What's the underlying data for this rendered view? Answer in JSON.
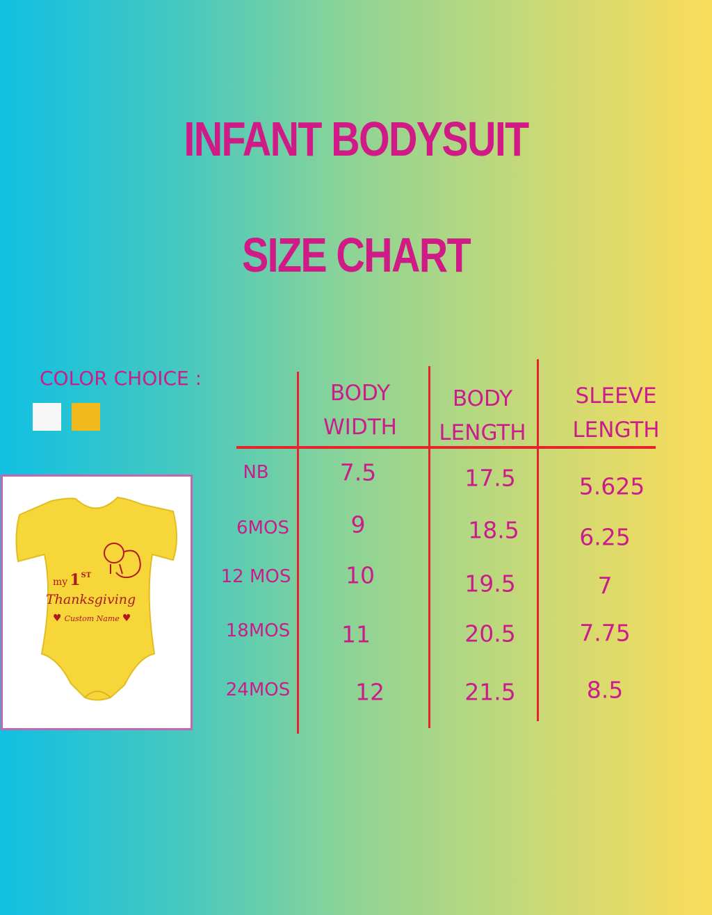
{
  "title_line1": "INFANT BODYSUIT",
  "title_line2": "SIZE CHART",
  "color_choice": {
    "label": "COLOR CHOICE :",
    "swatches": [
      "#f7f7f7",
      "#f2b91c"
    ]
  },
  "product_image": {
    "lettering": {
      "my": "my",
      "first": "1",
      "first_suffix": "ST",
      "thanksgiving": "Thanksgiving",
      "custom_name": "Custom Name"
    },
    "garment_color": "#f7d63a",
    "print_color": "#b0171f"
  },
  "table": {
    "headers": [
      {
        "line1": "BODY",
        "line2": "WIDTH"
      },
      {
        "line1": "BODY",
        "line2": "LENGTH"
      },
      {
        "line1": "SLEEVE",
        "line2": "LENGTH"
      }
    ],
    "rows": [
      {
        "size": "NB",
        "body_width": "7.5",
        "body_length": "17.5",
        "sleeve_length": "5.625"
      },
      {
        "size": "6MOS",
        "body_width": "9",
        "body_length": "18.5",
        "sleeve_length": "6.25"
      },
      {
        "size": "12 MOS",
        "body_width": "10",
        "body_length": "19.5",
        "sleeve_length": "7"
      },
      {
        "size": "18MOS",
        "body_width": "11",
        "body_length": "20.5",
        "sleeve_length": "7.75"
      },
      {
        "size": "24MOS",
        "body_width": "12",
        "body_length": "21.5",
        "sleeve_length": "8.5"
      }
    ]
  },
  "colors": {
    "text": "#c91d8b",
    "grid_lines": "#e5242b",
    "gradient_left": "#10c0e2",
    "gradient_right": "#fbdc5a"
  }
}
